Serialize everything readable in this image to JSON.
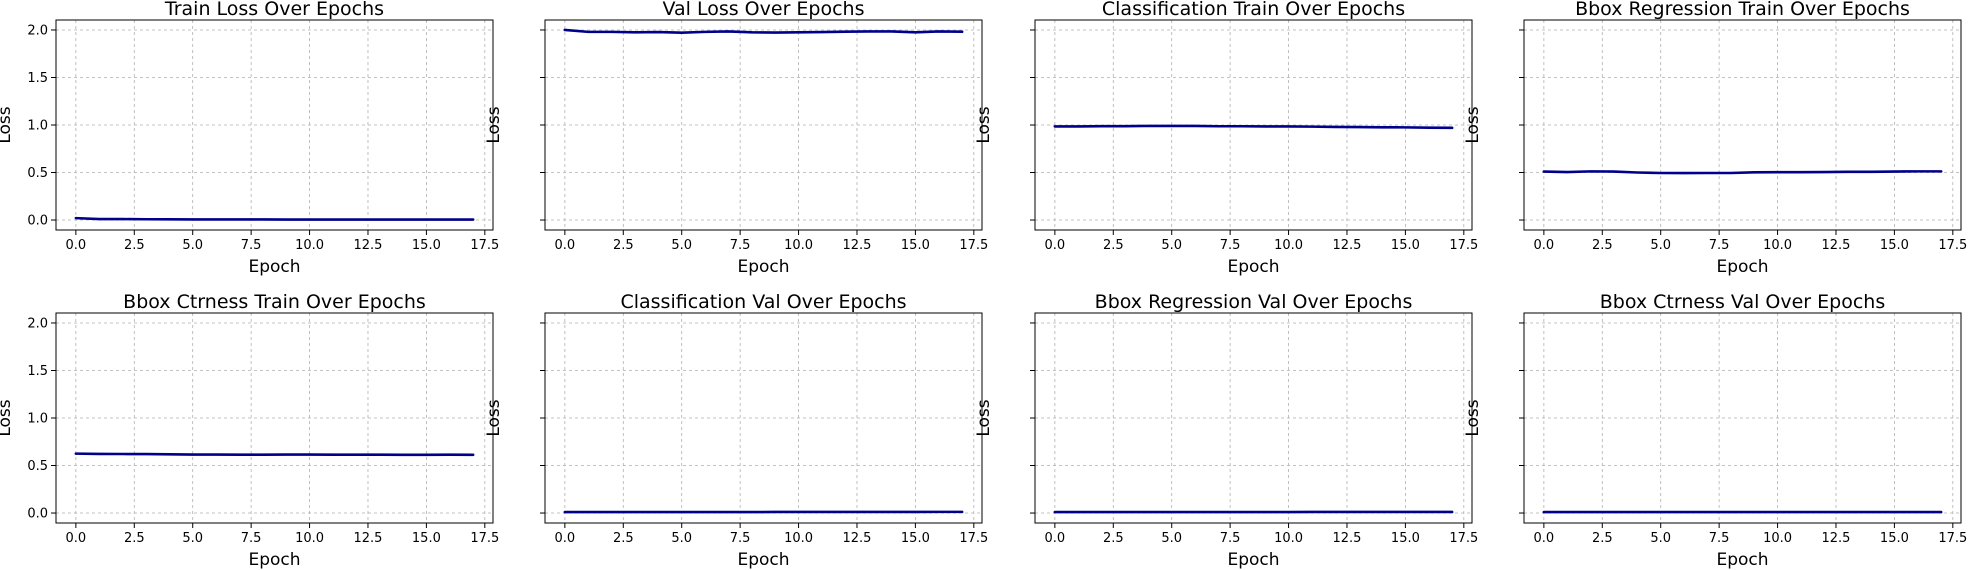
{
  "figure": {
    "line_color": "#00008b",
    "grid": true,
    "sharey": true
  },
  "chart_data": [
    {
      "type": "line",
      "title": "Train Loss Over Epochs",
      "xlabel": "Epoch",
      "ylabel": "Loss",
      "xlim": [
        -0.85,
        17.85
      ],
      "ylim": [
        -0.105,
        2.105
      ],
      "xticks": [
        0,
        2.5,
        5,
        7.5,
        10,
        12.5,
        15,
        17.5
      ],
      "xticklabels": [
        "0.0",
        "2.5",
        "5.0",
        "7.5",
        "10.0",
        "12.5",
        "15.0",
        "17.5"
      ],
      "yticks": [
        0,
        0.5,
        1,
        1.5,
        2
      ],
      "yticklabels": [
        "0.0",
        "0.5",
        "1.0",
        "1.5",
        "2.0"
      ],
      "x": [
        0,
        1,
        2,
        3,
        4,
        5,
        6,
        7,
        8,
        9,
        10,
        11,
        12,
        13,
        14,
        15,
        16,
        17
      ],
      "series": [
        {
          "values": [
            0.02,
            0.01,
            0.01,
            0.008,
            0.007,
            0.006,
            0.006,
            0.006,
            0.006,
            0.005,
            0.005,
            0.005,
            0.005,
            0.005,
            0.005,
            0.005,
            0.005,
            0.005
          ]
        }
      ]
    },
    {
      "type": "line",
      "title": "Val Loss Over Epochs",
      "xlabel": "Epoch",
      "ylabel": "Loss",
      "xlim": [
        -0.85,
        17.85
      ],
      "ylim": [
        -0.105,
        2.105
      ],
      "xticks": [
        0,
        2.5,
        5,
        7.5,
        10,
        12.5,
        15,
        17.5
      ],
      "xticklabels": [
        "0.0",
        "2.5",
        "5.0",
        "7.5",
        "10.0",
        "12.5",
        "15.0",
        "17.5"
      ],
      "yticks": [
        0,
        0.5,
        1,
        1.5,
        2
      ],
      "yticklabels": [
        "",
        "",
        "",
        "",
        ""
      ],
      "x": [
        0,
        1,
        2,
        3,
        4,
        5,
        6,
        7,
        8,
        9,
        10,
        11,
        12,
        13,
        14,
        15,
        16,
        17
      ],
      "series": [
        {
          "values": [
            2.0,
            1.98,
            1.98,
            1.975,
            1.978,
            1.972,
            1.98,
            1.985,
            1.975,
            1.973,
            1.975,
            1.978,
            1.982,
            1.985,
            1.985,
            1.975,
            1.985,
            1.982
          ]
        }
      ]
    },
    {
      "type": "line",
      "title": "Classification Train Over Epochs",
      "xlabel": "Epoch",
      "ylabel": "Loss",
      "xlim": [
        -0.85,
        17.85
      ],
      "ylim": [
        -0.105,
        2.105
      ],
      "xticks": [
        0,
        2.5,
        5,
        7.5,
        10,
        12.5,
        15,
        17.5
      ],
      "xticklabels": [
        "0.0",
        "2.5",
        "5.0",
        "7.5",
        "10.0",
        "12.5",
        "15.0",
        "17.5"
      ],
      "yticks": [
        0,
        0.5,
        1,
        1.5,
        2
      ],
      "yticklabels": [
        "",
        "",
        "",
        "",
        ""
      ],
      "x": [
        0,
        1,
        2,
        3,
        4,
        5,
        6,
        7,
        8,
        9,
        10,
        11,
        12,
        13,
        14,
        15,
        16,
        17
      ],
      "series": [
        {
          "values": [
            0.985,
            0.985,
            0.988,
            0.988,
            0.99,
            0.99,
            0.99,
            0.987,
            0.987,
            0.985,
            0.985,
            0.983,
            0.98,
            0.978,
            0.976,
            0.975,
            0.972,
            0.97
          ]
        }
      ]
    },
    {
      "type": "line",
      "title": "Bbox Regression Train Over Epochs",
      "xlabel": "Epoch",
      "ylabel": "Loss",
      "xlim": [
        -0.85,
        17.85
      ],
      "ylim": [
        -0.105,
        2.105
      ],
      "xticks": [
        0,
        2.5,
        5,
        7.5,
        10,
        12.5,
        15,
        17.5
      ],
      "xticklabels": [
        "0.0",
        "2.5",
        "5.0",
        "7.5",
        "10.0",
        "12.5",
        "15.0",
        "17.5"
      ],
      "yticks": [
        0,
        0.5,
        1,
        1.5,
        2
      ],
      "yticklabels": [
        "",
        "",
        "",
        "",
        ""
      ],
      "x": [
        0,
        1,
        2,
        3,
        4,
        5,
        6,
        7,
        8,
        9,
        10,
        11,
        12,
        13,
        14,
        15,
        16,
        17
      ],
      "series": [
        {
          "values": [
            0.51,
            0.505,
            0.512,
            0.51,
            0.5,
            0.495,
            0.494,
            0.495,
            0.495,
            0.502,
            0.503,
            0.503,
            0.505,
            0.507,
            0.507,
            0.51,
            0.512,
            0.512
          ]
        }
      ]
    },
    {
      "type": "line",
      "title": "Bbox Ctrness Train Over Epochs",
      "xlabel": "Epoch",
      "ylabel": "Loss",
      "xlim": [
        -0.85,
        17.85
      ],
      "ylim": [
        -0.105,
        2.105
      ],
      "xticks": [
        0,
        2.5,
        5,
        7.5,
        10,
        12.5,
        15,
        17.5
      ],
      "xticklabels": [
        "0.0",
        "2.5",
        "5.0",
        "7.5",
        "10.0",
        "12.5",
        "15.0",
        "17.5"
      ],
      "yticks": [
        0,
        0.5,
        1,
        1.5,
        2
      ],
      "yticklabels": [
        "0.0",
        "0.5",
        "1.0",
        "1.5",
        "2.0"
      ],
      "x": [
        0,
        1,
        2,
        3,
        4,
        5,
        6,
        7,
        8,
        9,
        10,
        11,
        12,
        13,
        14,
        15,
        16,
        17
      ],
      "series": [
        {
          "values": [
            0.625,
            0.622,
            0.621,
            0.62,
            0.618,
            0.615,
            0.615,
            0.614,
            0.614,
            0.615,
            0.615,
            0.614,
            0.614,
            0.614,
            0.613,
            0.613,
            0.614,
            0.613
          ]
        }
      ]
    },
    {
      "type": "line",
      "title": "Classification Val Over Epochs",
      "xlabel": "Epoch",
      "ylabel": "Loss",
      "xlim": [
        -0.85,
        17.85
      ],
      "ylim": [
        -0.105,
        2.105
      ],
      "xticks": [
        0,
        2.5,
        5,
        7.5,
        10,
        12.5,
        15,
        17.5
      ],
      "xticklabels": [
        "0.0",
        "2.5",
        "5.0",
        "7.5",
        "10.0",
        "12.5",
        "15.0",
        "17.5"
      ],
      "yticks": [
        0,
        0.5,
        1,
        1.5,
        2
      ],
      "yticklabels": [
        "",
        "",
        "",
        "",
        ""
      ],
      "x": [
        0,
        1,
        2,
        3,
        4,
        5,
        6,
        7,
        8,
        9,
        10,
        11,
        12,
        13,
        14,
        15,
        16,
        17
      ],
      "series": [
        {
          "values": [
            0.01,
            0.01,
            0.01,
            0.01,
            0.01,
            0.01,
            0.01,
            0.01,
            0.01,
            0.011,
            0.011,
            0.011,
            0.011,
            0.011,
            0.011,
            0.011,
            0.012,
            0.012
          ]
        }
      ]
    },
    {
      "type": "line",
      "title": "Bbox Regression Val Over Epochs",
      "xlabel": "Epoch",
      "ylabel": "Loss",
      "xlim": [
        -0.85,
        17.85
      ],
      "ylim": [
        -0.105,
        2.105
      ],
      "xticks": [
        0,
        2.5,
        5,
        7.5,
        10,
        12.5,
        15,
        17.5
      ],
      "xticklabels": [
        "0.0",
        "2.5",
        "5.0",
        "7.5",
        "10.0",
        "12.5",
        "15.0",
        "17.5"
      ],
      "yticks": [
        0,
        0.5,
        1,
        1.5,
        2
      ],
      "yticklabels": [
        "",
        "",
        "",
        "",
        ""
      ],
      "x": [
        0,
        1,
        2,
        3,
        4,
        5,
        6,
        7,
        8,
        9,
        10,
        11,
        12,
        13,
        14,
        15,
        16,
        17
      ],
      "series": [
        {
          "values": [
            0.01,
            0.01,
            0.01,
            0.01,
            0.01,
            0.01,
            0.01,
            0.01,
            0.01,
            0.01,
            0.01,
            0.011,
            0.011,
            0.011,
            0.011,
            0.011,
            0.011,
            0.011
          ]
        }
      ]
    },
    {
      "type": "line",
      "title": "Bbox Ctrness Val Over Epochs",
      "xlabel": "Epoch",
      "ylabel": "Loss",
      "xlim": [
        -0.85,
        17.85
      ],
      "ylim": [
        -0.105,
        2.105
      ],
      "xticks": [
        0,
        2.5,
        5,
        7.5,
        10,
        12.5,
        15,
        17.5
      ],
      "xticklabels": [
        "0.0",
        "2.5",
        "5.0",
        "7.5",
        "10.0",
        "12.5",
        "15.0",
        "17.5"
      ],
      "yticks": [
        0,
        0.5,
        1,
        1.5,
        2
      ],
      "yticklabels": [
        "",
        "",
        "",
        "",
        ""
      ],
      "x": [
        0,
        1,
        2,
        3,
        4,
        5,
        6,
        7,
        8,
        9,
        10,
        11,
        12,
        13,
        14,
        15,
        16,
        17
      ],
      "series": [
        {
          "values": [
            0.01,
            0.01,
            0.01,
            0.01,
            0.01,
            0.01,
            0.01,
            0.01,
            0.01,
            0.01,
            0.01,
            0.01,
            0.01,
            0.01,
            0.01,
            0.01,
            0.01,
            0.01
          ]
        }
      ]
    }
  ]
}
